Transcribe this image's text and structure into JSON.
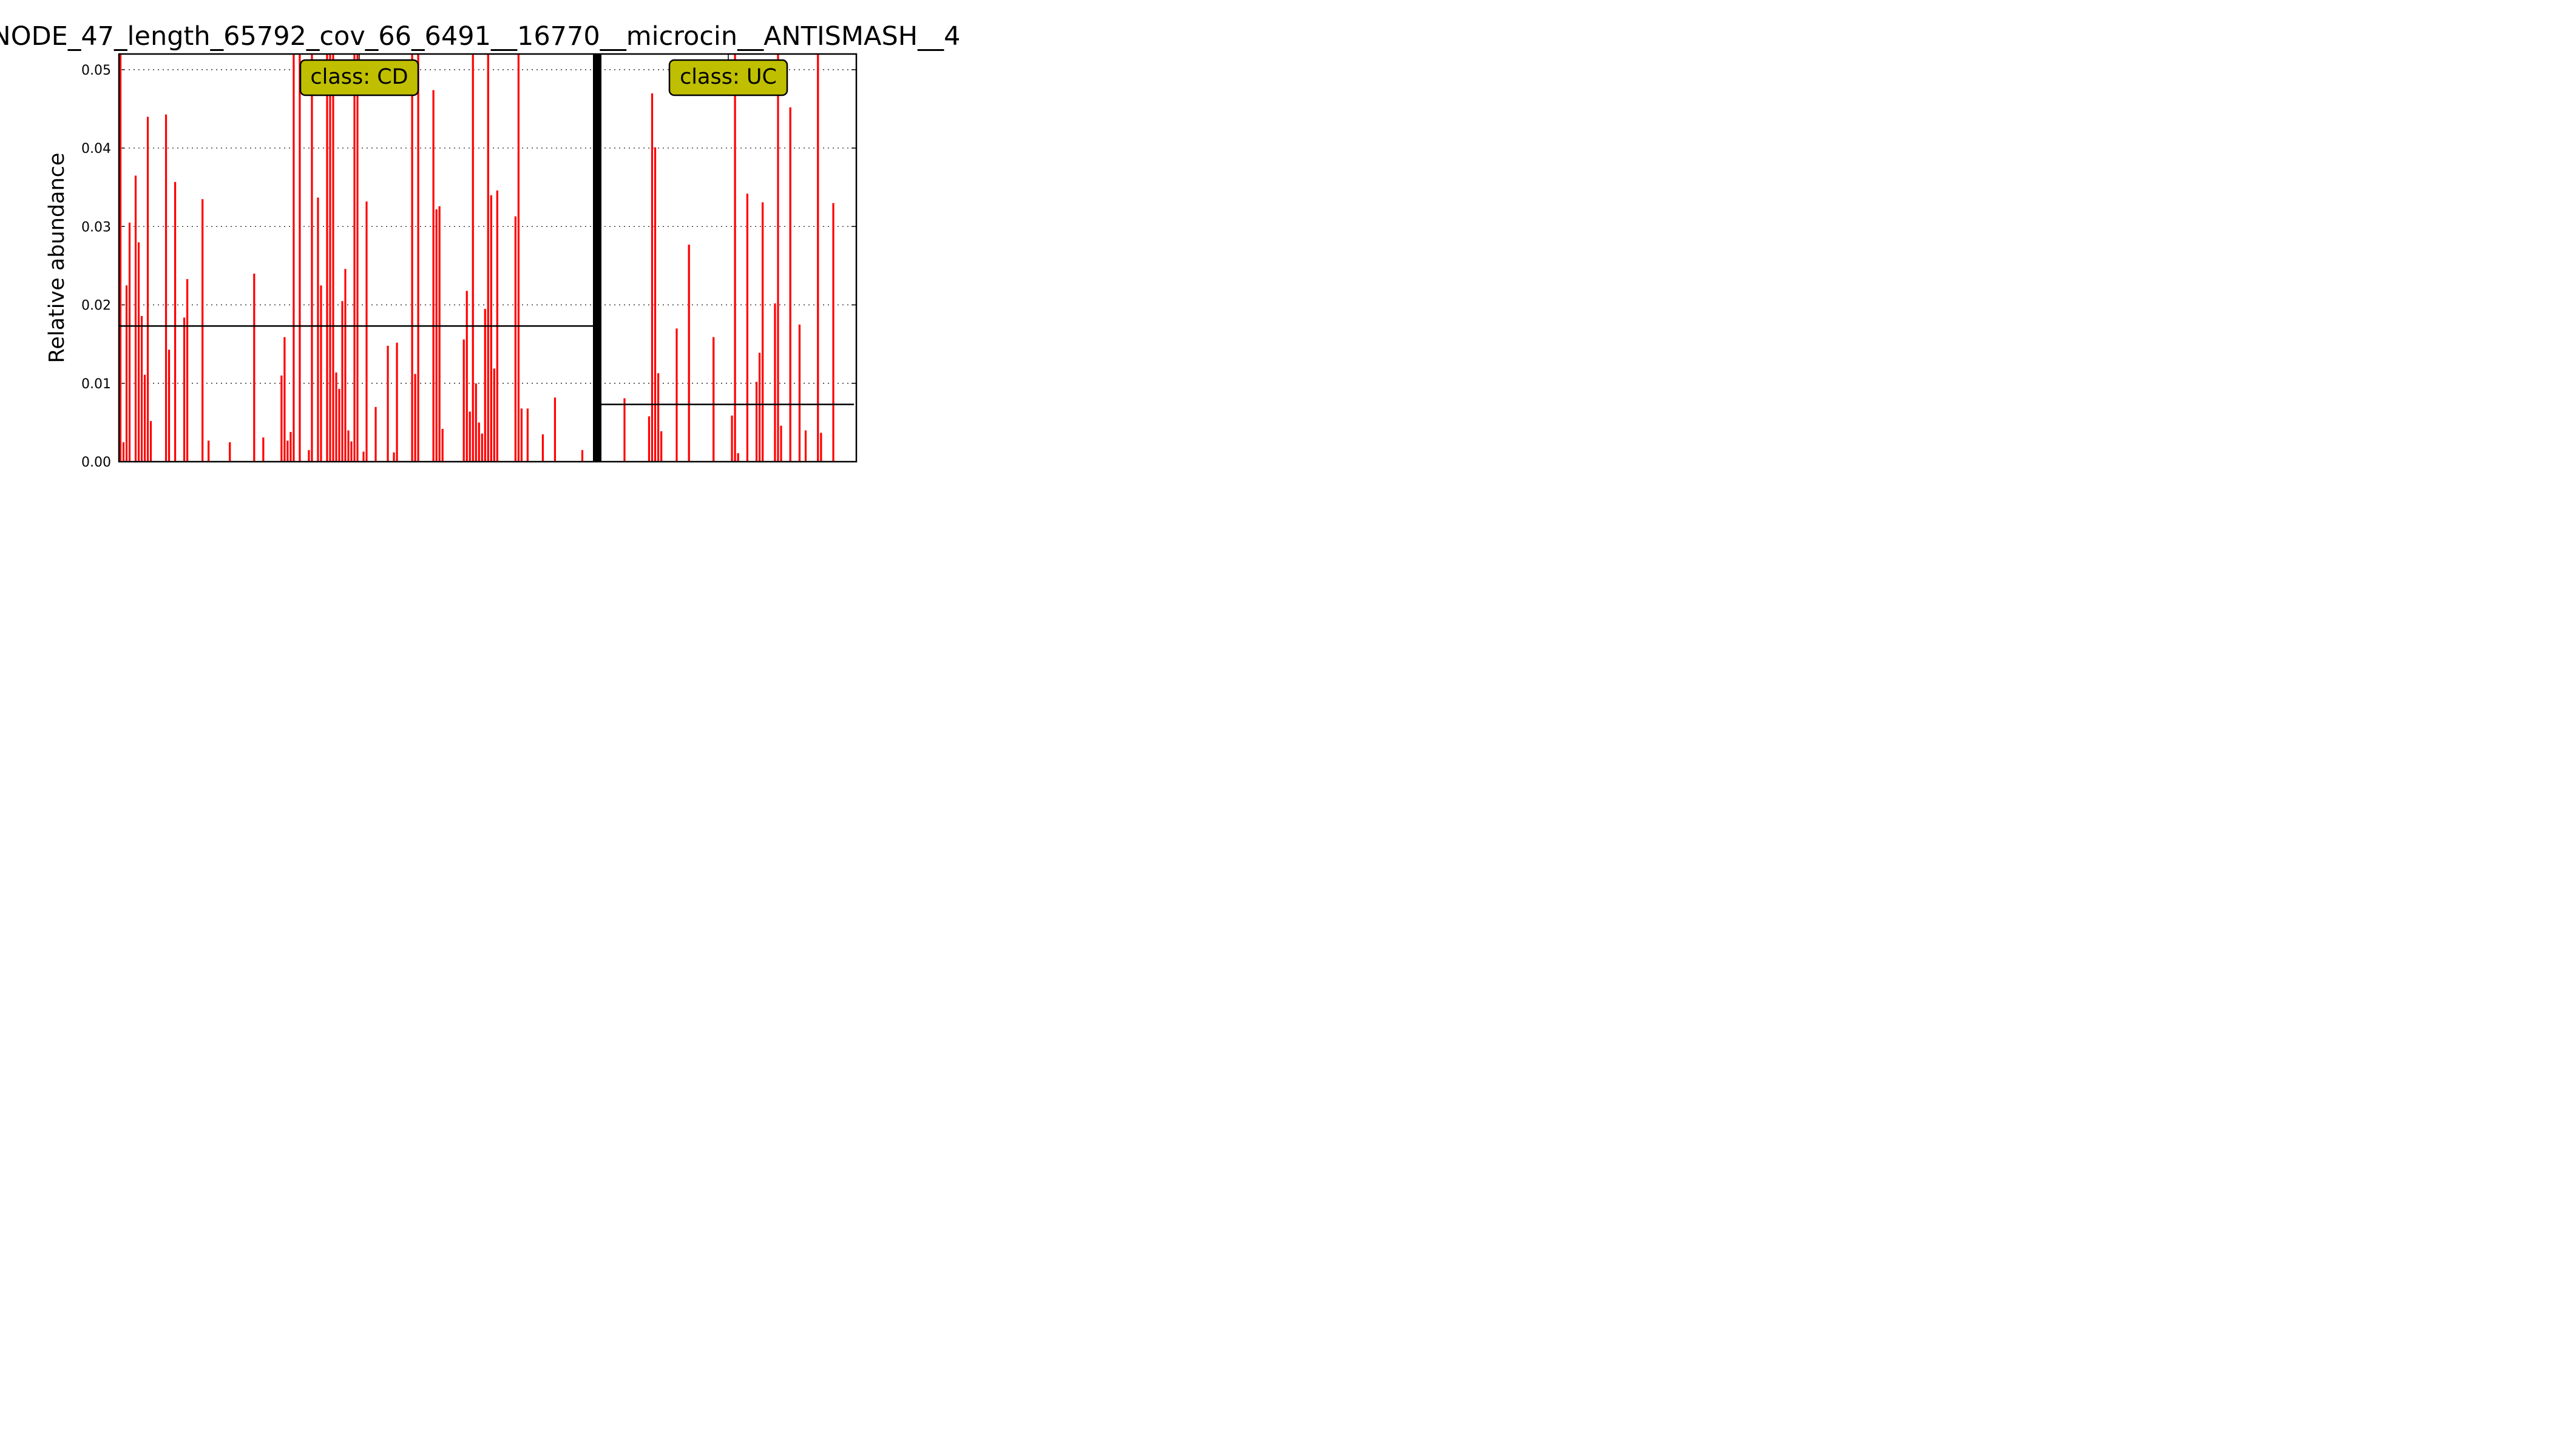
{
  "chart_data": {
    "type": "bar",
    "title": "NODE_47_length_65792_cov_66_6491__16770__microcin__ANTISMASH__4",
    "ylabel": "Relative abundance",
    "xlabel": "",
    "ylim": [
      0,
      0.052
    ],
    "yticks": [
      "0.00",
      "0.01",
      "0.02",
      "0.03",
      "0.04",
      "0.05"
    ],
    "grid": true,
    "colors": {
      "bar": "#ff0000",
      "line": "#000000",
      "class_box": "#bfbf00",
      "separator": "#000000"
    },
    "panels": [
      {
        "class_label": "class: CD",
        "mean": 0.0173,
        "n_samples": 156,
        "values": [
          [
            0,
            0.052
          ],
          [
            1,
            0.0025
          ],
          [
            2,
            0.0225
          ],
          [
            3,
            0.0305
          ],
          [
            5,
            0.0365
          ],
          [
            6,
            0.028
          ],
          [
            7,
            0.0186
          ],
          [
            8,
            0.0111
          ],
          [
            9,
            0.044
          ],
          [
            10,
            0.0052
          ],
          [
            15,
            0.0443
          ],
          [
            16,
            0.0143
          ],
          [
            18,
            0.0357
          ],
          [
            21,
            0.0184
          ],
          [
            22,
            0.0233
          ],
          [
            27,
            0.0335
          ],
          [
            29,
            0.0027
          ],
          [
            36,
            0.0025
          ],
          [
            44,
            0.024
          ],
          [
            47,
            0.0031
          ],
          [
            53,
            0.011
          ],
          [
            54,
            0.0159
          ],
          [
            55,
            0.0027
          ],
          [
            56,
            0.0038
          ],
          [
            57,
            0.052
          ],
          [
            59,
            0.052
          ],
          [
            62,
            0.0015
          ],
          [
            63,
            0.052
          ],
          [
            65,
            0.0337
          ],
          [
            66,
            0.0225
          ],
          [
            68,
            0.052
          ],
          [
            69,
            0.052
          ],
          [
            70,
            0.052
          ],
          [
            71,
            0.0114
          ],
          [
            72,
            0.0093
          ],
          [
            73,
            0.0205
          ],
          [
            74,
            0.0246
          ],
          [
            75,
            0.004
          ],
          [
            76,
            0.0026
          ],
          [
            77,
            0.052
          ],
          [
            78,
            0.052
          ],
          [
            80,
            0.0013
          ],
          [
            81,
            0.0332
          ],
          [
            84,
            0.007
          ],
          [
            88,
            0.0148
          ],
          [
            90,
            0.0012
          ],
          [
            91,
            0.0152
          ],
          [
            96,
            0.052
          ],
          [
            97,
            0.0112
          ],
          [
            98,
            0.052
          ],
          [
            103,
            0.0474
          ],
          [
            104,
            0.0322
          ],
          [
            105,
            0.0326
          ],
          [
            106,
            0.0042
          ],
          [
            113,
            0.0156
          ],
          [
            114,
            0.0218
          ],
          [
            115,
            0.0064
          ],
          [
            116,
            0.052
          ],
          [
            117,
            0.01
          ],
          [
            118,
            0.005
          ],
          [
            119,
            0.0036
          ],
          [
            120,
            0.0195
          ],
          [
            121,
            0.052
          ],
          [
            122,
            0.034
          ],
          [
            123,
            0.0119
          ],
          [
            124,
            0.0346
          ],
          [
            130,
            0.0313
          ],
          [
            131,
            0.052
          ],
          [
            132,
            0.0068
          ],
          [
            134,
            0.0068
          ],
          [
            139,
            0.0035
          ],
          [
            143,
            0.0082
          ],
          [
            152,
            0.0015
          ]
        ]
      },
      {
        "class_label": "class: UC",
        "mean": 0.0073,
        "n_samples": 83,
        "values": [
          [
            7,
            0.0081
          ],
          [
            15,
            0.0058
          ],
          [
            16,
            0.047
          ],
          [
            17,
            0.0401
          ],
          [
            18,
            0.0113
          ],
          [
            19,
            0.0039
          ],
          [
            24,
            0.017
          ],
          [
            28,
            0.0277
          ],
          [
            36,
            0.0159
          ],
          [
            42,
            0.0059
          ],
          [
            43,
            0.052
          ],
          [
            44,
            0.0011
          ],
          [
            47,
            0.0342
          ],
          [
            50,
            0.0102
          ],
          [
            51,
            0.0139
          ],
          [
            52,
            0.0331
          ],
          [
            56,
            0.0202
          ],
          [
            57,
            0.052
          ],
          [
            58,
            0.0046
          ],
          [
            61,
            0.0452
          ],
          [
            64,
            0.0175
          ],
          [
            66,
            0.004
          ],
          [
            70,
            0.052
          ],
          [
            71,
            0.0037
          ],
          [
            75,
            0.033
          ]
        ]
      }
    ]
  }
}
